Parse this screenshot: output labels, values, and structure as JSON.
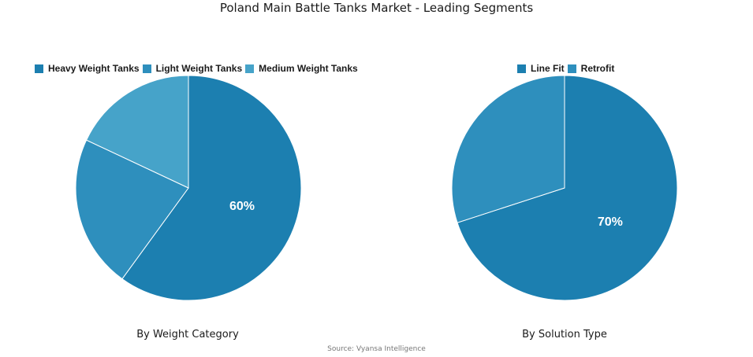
{
  "title": "Poland Main Battle Tanks Market - Leading Segments",
  "source": "Source: Vyansa Intelligence",
  "chart_data": [
    {
      "type": "pie",
      "label": "By Weight Category",
      "legend_position": "top",
      "slices": [
        {
          "name": "Heavy Weight Tanks",
          "value": 60,
          "color": "#1c7fb0",
          "label": "60%"
        },
        {
          "name": "Light Weight Tanks",
          "value": 22,
          "color": "#2e8fbd",
          "label": ""
        },
        {
          "name": "Medium Weight Tanks",
          "value": 18,
          "color": "#46a3c9",
          "label": ""
        }
      ]
    },
    {
      "type": "pie",
      "label": "By Solution Type",
      "legend_position": "top",
      "slices": [
        {
          "name": "Line Fit",
          "value": 70,
          "color": "#1c7fb0",
          "label": "70%"
        },
        {
          "name": "Retrofit",
          "value": 30,
          "color": "#2e8fbd",
          "label": ""
        }
      ]
    }
  ]
}
